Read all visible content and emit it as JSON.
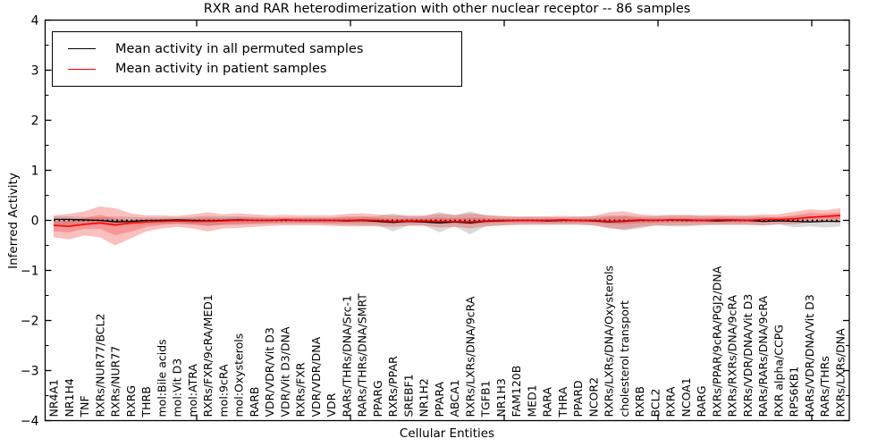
{
  "chart_data": {
    "type": "line",
    "title": "RXR and RAR heterodimerization with other nuclear receptor -- 86 samples",
    "xlabel": "Cellular Entities",
    "ylabel": "Inferred Activity",
    "ylim": [
      -4,
      4
    ],
    "yticks": [
      {
        "v": 4,
        "label": "4"
      },
      {
        "v": 3,
        "label": "3"
      },
      {
        "v": 2,
        "label": "2"
      },
      {
        "v": 1,
        "label": "1"
      },
      {
        "v": 0,
        "label": "0"
      },
      {
        "v": -1,
        "label": "−1"
      },
      {
        "v": -2,
        "label": "−2"
      },
      {
        "v": -3,
        "label": "−3"
      },
      {
        "v": -4,
        "label": "−4"
      }
    ],
    "grid": false,
    "legend_position": "upper left",
    "zero_line": {
      "style": "dotted",
      "color": "#000000",
      "y": 0
    },
    "categories": [
      "NR4A1",
      "NR1H4",
      "TNF",
      "RXRs/NUR77/BCL2",
      "RXRs/NUR77",
      "RXRG",
      "THRB",
      "mol:Bile acids",
      "mol:Vit D3",
      "mol:ATRA",
      "RXRs/FXR/9cRA/MED1",
      "mol:9cRA",
      "mol:Oxysterols",
      "RARB",
      "VDR/VDR/Vit D3",
      "VDR/Vit D3/DNA",
      "RXRs/FXR",
      "VDR/VDR/DNA",
      "VDR",
      "RARs/THRs/DNA/Src-1",
      "RARs/THRs/DNA/SMRT",
      "PPARG",
      "RXRs/PPAR",
      "SREBF1",
      "NR1H2",
      "PPARA",
      "ABCA1",
      "RXRs/LXRs/DNA/9cRA",
      "TGFB1",
      "NR1H3",
      "FAM120B",
      "MED1",
      "RARA",
      "THRA",
      "PPARD",
      "NCOR2",
      "RXRs/LXRs/DNA/Oxysterols",
      "cholesterol transport",
      "RXRB",
      "BCL2",
      "RXRA",
      "NCOA1",
      "RARG",
      "RXRs/PPAR/9cRA/PGJ2/DNA",
      "RXRs/RXRs/DNA/9cRA",
      "RXRs/VDR/DNA/Vit D3",
      "RARs/RARs/DNA/9cRA",
      "RXR alpha/CCPG",
      "RPS6KB1",
      "RARs/VDR/DNA/Vit D3",
      "RARs/THRs",
      "RXRs/LXRs/DNA"
    ],
    "series": [
      {
        "name": "Mean activity in all permuted samples",
        "color": "#000000",
        "values": [
          0.02,
          0.02,
          0.01,
          0,
          -0.03,
          -0.02,
          0,
          0,
          0.01,
          0,
          -0.01,
          0,
          0.01,
          0,
          0,
          0.01,
          0,
          0,
          0,
          -0.01,
          0,
          -0.02,
          -0.04,
          -0.02,
          -0.03,
          -0.05,
          -0.03,
          -0.05,
          -0.02,
          -0.01,
          0,
          0,
          -0.01,
          0,
          0,
          -0.01,
          -0.03,
          -0.02,
          0,
          0,
          0.01,
          0,
          0,
          -0.01,
          0,
          0,
          -0.02,
          -0.01,
          -0.02,
          -0.03,
          -0.02,
          -0.02
        ]
      },
      {
        "name": "Mean activity in patient samples",
        "color": "#ff0000",
        "values": [
          -0.1,
          -0.12,
          -0.08,
          -0.05,
          -0.09,
          -0.05,
          -0.03,
          -0.02,
          -0.01,
          -0.02,
          -0.02,
          -0.01,
          0,
          0,
          0,
          0.01,
          0,
          0,
          0,
          0,
          0.01,
          0,
          -0.02,
          -0.01,
          -0.01,
          -0.02,
          -0.02,
          -0.03,
          -0.01,
          0,
          0,
          0,
          0,
          0.01,
          0,
          0,
          -0.02,
          -0.01,
          0.01,
          0,
          0.01,
          0.01,
          0,
          0.01,
          0.01,
          0,
          0.02,
          0.02,
          0.03,
          0.06,
          0.08,
          0.1
        ]
      }
    ],
    "bands": [
      {
        "name": "permuted-samples-spread",
        "color": "#8c8c8c",
        "opacity": 0.32,
        "upper": [
          0.08,
          0.08,
          0.07,
          0.06,
          0.08,
          0.07,
          0.06,
          0.06,
          0.06,
          0.07,
          0.09,
          0.08,
          0.08,
          0.07,
          0.06,
          0.06,
          0.06,
          0.06,
          0.06,
          0.08,
          0.08,
          0.08,
          0.14,
          0.08,
          0.08,
          0.17,
          0.1,
          0.18,
          0.1,
          0.08,
          0.07,
          0.07,
          0.07,
          0.06,
          0.07,
          0.08,
          0.1,
          0.1,
          0.08,
          0.08,
          0.1,
          0.1,
          0.09,
          0.08,
          0.08,
          0.08,
          0.08,
          0.07,
          0.08,
          0.09,
          0.08,
          0.08
        ],
        "lower": [
          -0.12,
          -0.1,
          -0.09,
          -0.08,
          -0.12,
          -0.1,
          -0.08,
          -0.07,
          -0.07,
          -0.08,
          -0.1,
          -0.09,
          -0.09,
          -0.08,
          -0.07,
          -0.07,
          -0.07,
          -0.07,
          -0.08,
          -0.09,
          -0.1,
          -0.1,
          -0.22,
          -0.1,
          -0.1,
          -0.24,
          -0.12,
          -0.28,
          -0.12,
          -0.1,
          -0.09,
          -0.08,
          -0.08,
          -0.08,
          -0.08,
          -0.1,
          -0.14,
          -0.2,
          -0.16,
          -0.1,
          -0.12,
          -0.12,
          -0.1,
          -0.09,
          -0.09,
          -0.09,
          -0.1,
          -0.08,
          -0.14,
          -0.12,
          -0.14,
          -0.12
        ]
      },
      {
        "name": "patient-samples-spread",
        "color": "#ee2c2c",
        "opacity": 0.3,
        "upper": [
          0.1,
          0.13,
          0.18,
          0.28,
          0.24,
          0.14,
          0.1,
          0.1,
          0.09,
          0.12,
          0.16,
          0.12,
          0.14,
          0.12,
          0.1,
          0.11,
          0.1,
          0.1,
          0.1,
          0.13,
          0.14,
          0.12,
          0.1,
          0.1,
          0.1,
          0.13,
          0.11,
          0.14,
          0.11,
          0.09,
          0.08,
          0.08,
          0.08,
          0.09,
          0.08,
          0.09,
          0.16,
          0.18,
          0.12,
          0.1,
          0.11,
          0.11,
          0.1,
          0.11,
          0.1,
          0.1,
          0.12,
          0.12,
          0.17,
          0.22,
          0.2,
          0.24
        ],
        "lower": [
          -0.34,
          -0.38,
          -0.3,
          -0.34,
          -0.5,
          -0.36,
          -0.22,
          -0.16,
          -0.13,
          -0.16,
          -0.22,
          -0.16,
          -0.15,
          -0.13,
          -0.11,
          -0.1,
          -0.1,
          -0.1,
          -0.11,
          -0.12,
          -0.12,
          -0.12,
          -0.13,
          -0.11,
          -0.11,
          -0.14,
          -0.13,
          -0.16,
          -0.12,
          -0.1,
          -0.09,
          -0.09,
          -0.09,
          -0.09,
          -0.09,
          -0.1,
          -0.16,
          -0.18,
          -0.13,
          -0.1,
          -0.1,
          -0.1,
          -0.09,
          -0.09,
          -0.09,
          -0.09,
          -0.1,
          -0.08,
          -0.08,
          -0.04,
          -0.02,
          -0.05
        ]
      }
    ]
  }
}
